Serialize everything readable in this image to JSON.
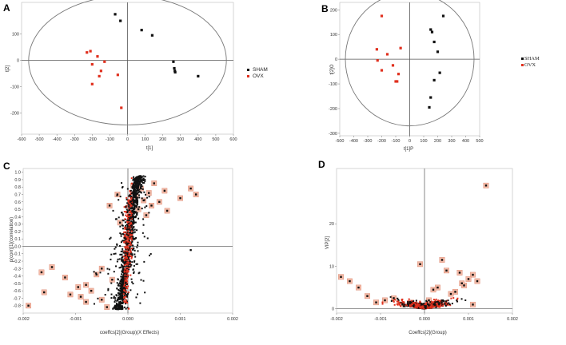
{
  "colors": {
    "sham": "#111111",
    "ovx": "#e0301e",
    "ellipse": "#777777",
    "axis": "#555555",
    "halo": "#f3b9a6"
  },
  "chart_data": [
    {
      "panel": "A",
      "type": "scatter",
      "title": "",
      "xlabel": "t[1]",
      "ylabel": "t[2]",
      "xlim": [
        -600,
        600
      ],
      "ylim": [
        -280,
        220
      ],
      "xticks": [
        "-600",
        "-500",
        "-400",
        "-300",
        "-200",
        "-100",
        "0",
        "100",
        "200",
        "300",
        "400",
        "500",
        "600"
      ],
      "yticks": [
        "-200",
        "-100",
        "0",
        "100"
      ],
      "legend": [
        "SHAM",
        "OVX"
      ],
      "legend_position": "right",
      "ellipse": {
        "rx": 560,
        "ry": 245
      },
      "series": [
        {
          "name": "SHAM",
          "color_key": "sham",
          "x": [
            -70,
            -40,
            80,
            140,
            260,
            265,
            268,
            270,
            400
          ],
          "y": [
            175,
            150,
            115,
            95,
            -5,
            -30,
            -40,
            -45,
            -60
          ]
        },
        {
          "name": "OVX",
          "color_key": "ovx",
          "x": [
            -230,
            -210,
            -200,
            -170,
            -160,
            -150,
            -130,
            -55,
            -35,
            -200
          ],
          "y": [
            30,
            35,
            -15,
            15,
            -60,
            -40,
            -5,
            -55,
            -180,
            -90
          ]
        }
      ]
    },
    {
      "panel": "B",
      "type": "scatter",
      "title": "",
      "xlabel": "t[1]P",
      "ylabel": "t[2]O",
      "xlim": [
        -500,
        500
      ],
      "ylim": [
        -310,
        230
      ],
      "xticks": [
        "-500",
        "-400",
        "-300",
        "-200",
        "-100",
        "0",
        "100",
        "200",
        "300",
        "400",
        "500"
      ],
      "yticks": [
        "-300",
        "-200",
        "-100",
        "0",
        "100",
        "200"
      ],
      "legend": [
        "SHAM",
        "OVX"
      ],
      "legend_position": "right",
      "ellipse": {
        "rx": 460,
        "ry": 270
      },
      "series": [
        {
          "name": "SHAM",
          "color_key": "sham",
          "x": [
            150,
            160,
            175,
            200,
            215,
            240,
            175,
            150,
            140
          ],
          "y": [
            120,
            110,
            70,
            30,
            -55,
            175,
            -85,
            -155,
            -195
          ]
        },
        {
          "name": "OVX",
          "color_key": "ovx",
          "x": [
            -200,
            -235,
            -160,
            -120,
            -100,
            -90,
            -65,
            -230,
            -80,
            -200
          ],
          "y": [
            175,
            40,
            20,
            -25,
            -90,
            -90,
            45,
            -5,
            -60,
            -45
          ]
        }
      ]
    },
    {
      "panel": "C",
      "type": "scatter",
      "title": "",
      "xlabel": "coeffcs[2](Group)(X Effects)",
      "ylabel": "p(corr)[1](correlation)",
      "xlim": [
        -0.002,
        0.002
      ],
      "ylim": [
        -0.9,
        1.05
      ],
      "xticks": [
        "-0.002",
        "-0.001",
        "0.000",
        "0.001",
        "0.002"
      ],
      "yticks": [
        "-0.8",
        "-0.7",
        "-0.6",
        "-0.5",
        "-0.4",
        "-0.3",
        "-0.2",
        "-0.1",
        "-0.0",
        "0.1",
        "0.2",
        "0.3",
        "0.4",
        "0.5",
        "0.6",
        "0.7",
        "0.8",
        "0.9",
        "1.0"
      ],
      "background_series": "dense cloud of ~1500 features along an S-curve (black, orange core)",
      "highlighted_points": {
        "x": [
          -0.0019,
          -0.00165,
          -0.0016,
          -0.00145,
          -0.0012,
          -0.00095,
          -0.0009,
          -0.0008,
          -0.0007,
          -0.0006,
          -0.0005,
          -0.0004,
          -0.00035,
          -0.0003,
          -0.0002,
          -0.00015,
          0.0001,
          0.00015,
          0.0002,
          0.00025,
          0.0003,
          0.00035,
          0.0004,
          0.00045,
          0.0005,
          0.0006,
          0.0007,
          0.00075,
          0.001,
          0.0012,
          0.0013,
          -0.0001,
          -0.0005,
          -0.0008,
          -0.0011
        ],
        "y": [
          -0.8,
          -0.35,
          -0.62,
          -0.28,
          -0.42,
          -0.55,
          -0.68,
          -0.52,
          -0.6,
          -0.38,
          -0.72,
          -0.82,
          0.55,
          -0.45,
          0.7,
          0.32,
          0.82,
          0.68,
          0.5,
          0.78,
          0.62,
          0.42,
          0.72,
          0.55,
          0.85,
          0.6,
          0.75,
          0.48,
          0.65,
          0.78,
          0.7,
          -0.5,
          -0.3,
          -0.75,
          -0.65
        ]
      },
      "extra_points": {
        "x": [
          0.0012
        ],
        "y": [
          -0.05
        ]
      }
    },
    {
      "panel": "D",
      "type": "scatter",
      "title": "",
      "xlabel": "Coeffcs[2](Group)",
      "ylabel": "VIP[2]",
      "xlim": [
        -0.002,
        0.002
      ],
      "ylim": [
        -1,
        33
      ],
      "xticks": [
        "-0.002",
        "-0.001",
        "0.000",
        "0.001",
        "0.002"
      ],
      "yticks": [
        "0",
        "10",
        "20"
      ],
      "background_series": "dense cluster of features near VIP≈0 (black/orange)",
      "highlighted_points": {
        "x": [
          0.0014,
          -0.0019,
          -0.0017,
          -0.0015,
          -0.0013,
          -0.0001,
          0.0004,
          0.0005,
          0.0008,
          0.0011,
          0.0012,
          0.0003,
          0.0007,
          0.001,
          -0.0011,
          -0.0009,
          -0.0007,
          -0.0005,
          0.0002,
          0.0006,
          0.0009,
          0.0001,
          -0.0003,
          0.00085,
          0.0011
        ],
        "y": [
          29,
          7.5,
          6.5,
          5,
          3,
          10.5,
          11.5,
          9,
          8.5,
          8,
          6.5,
          5,
          4,
          7,
          1.5,
          2,
          2.5,
          1,
          4.5,
          3.5,
          5.5,
          2,
          1.5,
          6,
          1
        ]
      }
    }
  ]
}
